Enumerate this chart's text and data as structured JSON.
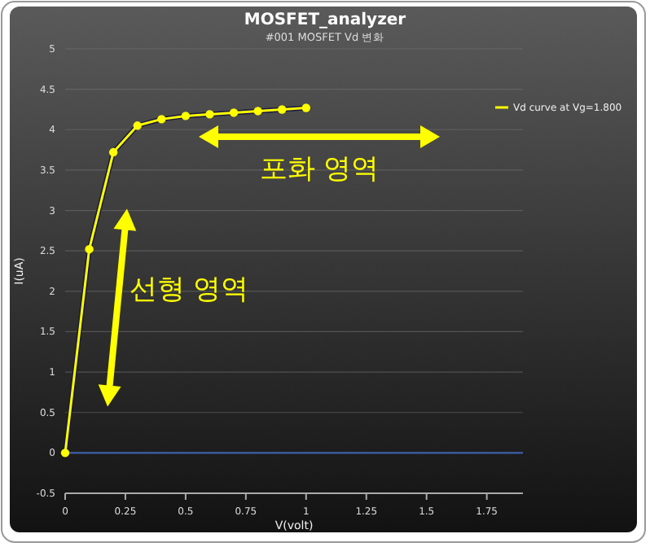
{
  "chart_data": {
    "type": "line",
    "title": "MOSFET_analyzer",
    "subtitle": "#001 MOSFET Vd 변화",
    "xlabel": "V(volt)",
    "ylabel": "I(uA)",
    "x": [
      0,
      0.1,
      0.2,
      0.3,
      0.4,
      0.5,
      0.6,
      0.7,
      0.8,
      0.9,
      1.0
    ],
    "series": [
      {
        "name": "Vd curve at Vg=1.800",
        "color": "#ffff00",
        "values": [
          0,
          2.52,
          3.72,
          4.05,
          4.13,
          4.17,
          4.19,
          4.21,
          4.23,
          4.25,
          4.27
        ]
      }
    ],
    "xlim": [
      0,
      1.9
    ],
    "xticks": [
      0,
      0.25,
      0.5,
      0.75,
      1,
      1.25,
      1.5,
      1.75
    ],
    "ylim": [
      -0.5,
      5
    ],
    "yticks": [
      -0.5,
      0,
      0.5,
      1,
      1.5,
      2,
      2.5,
      3,
      3.5,
      4,
      4.5,
      5
    ],
    "ref_lines": [
      {
        "axis": "y",
        "value": 0,
        "color": "#3d5fa8"
      }
    ],
    "annotations": [
      "포화 영역",
      "선형 영역"
    ],
    "grid": "y",
    "legend": "right",
    "marker": "circle",
    "line_style": "solid"
  }
}
